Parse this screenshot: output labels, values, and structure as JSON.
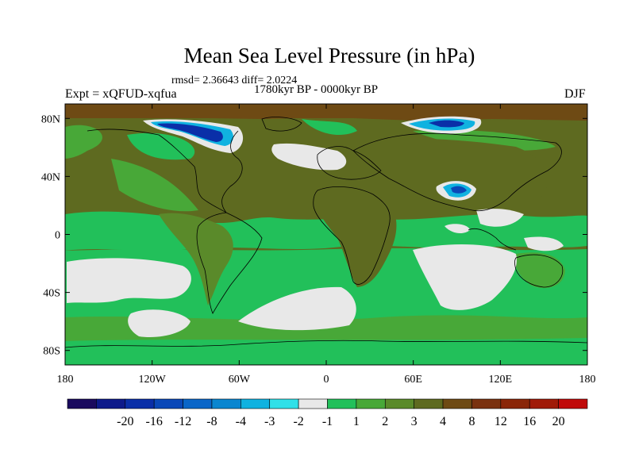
{
  "title": "Mean Sea Level Pressure (in hPa)",
  "stats": "rmsd= 2.36643 diff= 2.0224",
  "experiment": "Expt = xQFUD-xqfua",
  "period": "1780kyr BP - 0000kyr BP",
  "season": "DJF",
  "map": {
    "lon_range": [
      -180,
      180
    ],
    "lat_range": [
      -90,
      90
    ],
    "x_ticks": [
      {
        "lon": -180,
        "label": "180"
      },
      {
        "lon": -120,
        "label": "120W"
      },
      {
        "lon": -60,
        "label": "60W"
      },
      {
        "lon": 0,
        "label": "0"
      },
      {
        "lon": 60,
        "label": "60E"
      },
      {
        "lon": 120,
        "label": "120E"
      },
      {
        "lon": 180,
        "label": "180"
      }
    ],
    "y_ticks": [
      {
        "lat": 80,
        "label": "80N"
      },
      {
        "lat": 40,
        "label": "40N"
      },
      {
        "lat": 0,
        "label": "0"
      },
      {
        "lat": -40,
        "label": "40S"
      },
      {
        "lat": -80,
        "label": "80S"
      }
    ]
  },
  "colorbar": {
    "colors": [
      "#1a0a5e",
      "#0d1a8a",
      "#0a2fa8",
      "#0a48b8",
      "#0a66c8",
      "#0a86d0",
      "#10b2e0",
      "#30e0e8",
      "#e8e8e8",
      "#22c05a",
      "#48a838",
      "#5a8a2a",
      "#5e6a20",
      "#6e4a14",
      "#7a3210",
      "#8a2608",
      "#a01a08",
      "#c00a0a"
    ],
    "labels": [
      "-20",
      "-16",
      "-12",
      "-8",
      "-4",
      "-3",
      "-2",
      "-1",
      "1",
      "2",
      "3",
      "4",
      "8",
      "12",
      "16",
      "20"
    ]
  },
  "colors": {
    "background_field": "#5e6a20",
    "light_green": "#22c05a",
    "mid_green": "#48a838",
    "olive": "#5a8a2a",
    "neutral": "#e8e8e8",
    "brown": "#6e4a14",
    "deep_blue": "#0a2fa8",
    "cyan": "#10b2e0"
  }
}
